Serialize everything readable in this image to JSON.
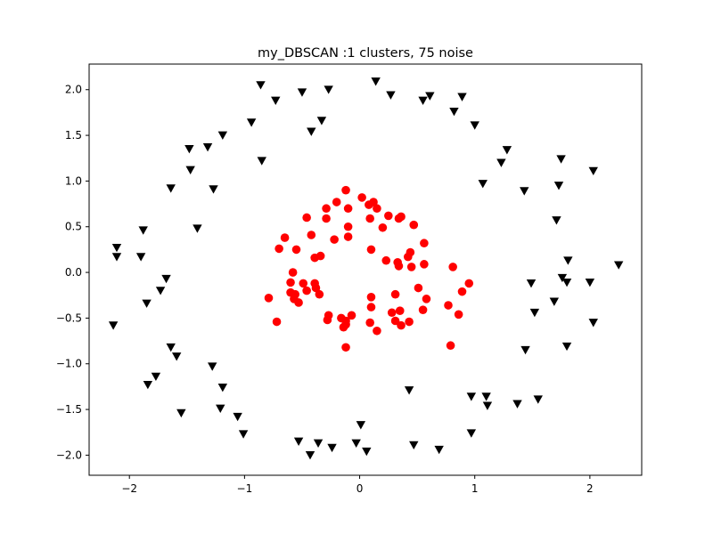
{
  "chart_data": {
    "type": "scatter",
    "title": "my_DBSCAN :1 clusters, 75 noise",
    "xlabel": "",
    "ylabel": "",
    "xlim": [
      -2.35,
      2.45
    ],
    "ylim": [
      -2.22,
      2.28
    ],
    "xticks": [
      -2,
      -1,
      0,
      1,
      2
    ],
    "xtick_labels": [
      "−2",
      "−1",
      "0",
      "1",
      "2"
    ],
    "yticks": [
      -2.0,
      -1.5,
      -1.0,
      -0.5,
      0.0,
      0.5,
      1.0,
      1.5,
      2.0
    ],
    "ytick_labels": [
      "−2.0",
      "−1.5",
      "−1.0",
      "−0.5",
      "0.0",
      "0.5",
      "1.0",
      "1.5",
      "2.0"
    ],
    "grid": false,
    "series": [
      {
        "marker": "circle",
        "color": "#ff0000",
        "points": [
          [
            -0.12,
            0.9
          ],
          [
            0.02,
            0.82
          ],
          [
            -0.2,
            0.77
          ],
          [
            0.12,
            0.77
          ],
          [
            0.08,
            0.74
          ],
          [
            -0.29,
            0.7
          ],
          [
            -0.1,
            0.7
          ],
          [
            0.15,
            0.7
          ],
          [
            -0.46,
            0.6
          ],
          [
            -0.29,
            0.59
          ],
          [
            0.09,
            0.59
          ],
          [
            0.25,
            0.62
          ],
          [
            0.34,
            0.59
          ],
          [
            0.36,
            0.61
          ],
          [
            0.47,
            0.52
          ],
          [
            -0.1,
            0.5
          ],
          [
            0.2,
            0.49
          ],
          [
            -0.42,
            0.41
          ],
          [
            -0.65,
            0.38
          ],
          [
            -0.22,
            0.36
          ],
          [
            -0.1,
            0.39
          ],
          [
            0.56,
            0.32
          ],
          [
            -0.7,
            0.26
          ],
          [
            -0.55,
            0.25
          ],
          [
            0.1,
            0.25
          ],
          [
            -0.39,
            0.16
          ],
          [
            -0.34,
            0.18
          ],
          [
            0.44,
            0.22
          ],
          [
            0.42,
            0.17
          ],
          [
            0.23,
            0.13
          ],
          [
            0.33,
            0.11
          ],
          [
            0.34,
            0.07
          ],
          [
            0.45,
            0.06
          ],
          [
            0.56,
            0.09
          ],
          [
            0.81,
            0.06
          ],
          [
            -0.58,
            0.0
          ],
          [
            -0.6,
            -0.11
          ],
          [
            -0.49,
            -0.12
          ],
          [
            -0.39,
            -0.12
          ],
          [
            -0.38,
            -0.17
          ],
          [
            0.51,
            -0.17
          ],
          [
            0.95,
            -0.12
          ],
          [
            -0.6,
            -0.22
          ],
          [
            -0.56,
            -0.24
          ],
          [
            -0.46,
            -0.2
          ],
          [
            -0.35,
            -0.24
          ],
          [
            0.89,
            -0.21
          ],
          [
            -0.79,
            -0.28
          ],
          [
            -0.57,
            -0.29
          ],
          [
            -0.53,
            -0.33
          ],
          [
            0.1,
            -0.27
          ],
          [
            0.31,
            -0.24
          ],
          [
            0.58,
            -0.29
          ],
          [
            0.77,
            -0.36
          ],
          [
            0.1,
            -0.38
          ],
          [
            0.28,
            -0.44
          ],
          [
            0.35,
            -0.42
          ],
          [
            0.55,
            -0.41
          ],
          [
            0.86,
            -0.46
          ],
          [
            -0.27,
            -0.47
          ],
          [
            -0.16,
            -0.5
          ],
          [
            -0.12,
            -0.53
          ],
          [
            -0.07,
            -0.47
          ],
          [
            -0.28,
            -0.52
          ],
          [
            -0.12,
            -0.57
          ],
          [
            -0.14,
            -0.6
          ],
          [
            0.09,
            -0.55
          ],
          [
            0.31,
            -0.53
          ],
          [
            0.36,
            -0.58
          ],
          [
            0.43,
            -0.54
          ],
          [
            0.15,
            -0.64
          ],
          [
            -0.72,
            -0.54
          ],
          [
            -0.12,
            -0.82
          ],
          [
            0.79,
            -0.8
          ]
        ]
      },
      {
        "marker": "triangle-down",
        "color": "#000000",
        "points": [
          [
            0.14,
            2.09
          ],
          [
            -0.86,
            2.05
          ],
          [
            -0.27,
            2.0
          ],
          [
            -0.5,
            1.97
          ],
          [
            0.27,
            1.94
          ],
          [
            0.61,
            1.93
          ],
          [
            0.89,
            1.92
          ],
          [
            -0.73,
            1.88
          ],
          [
            0.55,
            1.88
          ],
          [
            0.82,
            1.76
          ],
          [
            -0.33,
            1.66
          ],
          [
            -0.94,
            1.64
          ],
          [
            1.0,
            1.61
          ],
          [
            -0.42,
            1.54
          ],
          [
            -1.19,
            1.5
          ],
          [
            -1.48,
            1.35
          ],
          [
            -1.32,
            1.37
          ],
          [
            1.28,
            1.34
          ],
          [
            1.75,
            1.24
          ],
          [
            -0.85,
            1.22
          ],
          [
            1.23,
            1.2
          ],
          [
            -1.47,
            1.12
          ],
          [
            2.03,
            1.11
          ],
          [
            1.07,
            0.97
          ],
          [
            1.73,
            0.95
          ],
          [
            -1.64,
            0.92
          ],
          [
            -1.27,
            0.91
          ],
          [
            1.43,
            0.89
          ],
          [
            1.71,
            0.57
          ],
          [
            -1.41,
            0.48
          ],
          [
            -1.88,
            0.46
          ],
          [
            -2.11,
            0.27
          ],
          [
            -2.11,
            0.17
          ],
          [
            -1.9,
            0.17
          ],
          [
            1.81,
            0.13
          ],
          [
            2.25,
            0.08
          ],
          [
            1.76,
            -0.06
          ],
          [
            -1.68,
            -0.07
          ],
          [
            1.49,
            -0.12
          ],
          [
            1.8,
            -0.11
          ],
          [
            2.0,
            -0.11
          ],
          [
            -1.73,
            -0.2
          ],
          [
            1.69,
            -0.32
          ],
          [
            -1.85,
            -0.34
          ],
          [
            1.52,
            -0.44
          ],
          [
            2.03,
            -0.55
          ],
          [
            -2.14,
            -0.58
          ],
          [
            1.8,
            -0.81
          ],
          [
            -1.64,
            -0.82
          ],
          [
            1.44,
            -0.85
          ],
          [
            -1.59,
            -0.92
          ],
          [
            -1.28,
            -1.03
          ],
          [
            -1.77,
            -1.14
          ],
          [
            -1.84,
            -1.23
          ],
          [
            -1.19,
            -1.26
          ],
          [
            0.43,
            -1.29
          ],
          [
            0.97,
            -1.36
          ],
          [
            1.1,
            -1.36
          ],
          [
            1.55,
            -1.39
          ],
          [
            1.37,
            -1.44
          ],
          [
            1.11,
            -1.46
          ],
          [
            -1.21,
            -1.49
          ],
          [
            -1.55,
            -1.54
          ],
          [
            -1.06,
            -1.58
          ],
          [
            0.01,
            -1.67
          ],
          [
            0.97,
            -1.76
          ],
          [
            -1.01,
            -1.77
          ],
          [
            -0.53,
            -1.85
          ],
          [
            -0.36,
            -1.87
          ],
          [
            -0.03,
            -1.87
          ],
          [
            0.47,
            -1.89
          ],
          [
            -0.24,
            -1.92
          ],
          [
            0.69,
            -1.94
          ],
          [
            0.06,
            -1.96
          ],
          [
            -0.43,
            -2.0
          ]
        ]
      }
    ]
  }
}
